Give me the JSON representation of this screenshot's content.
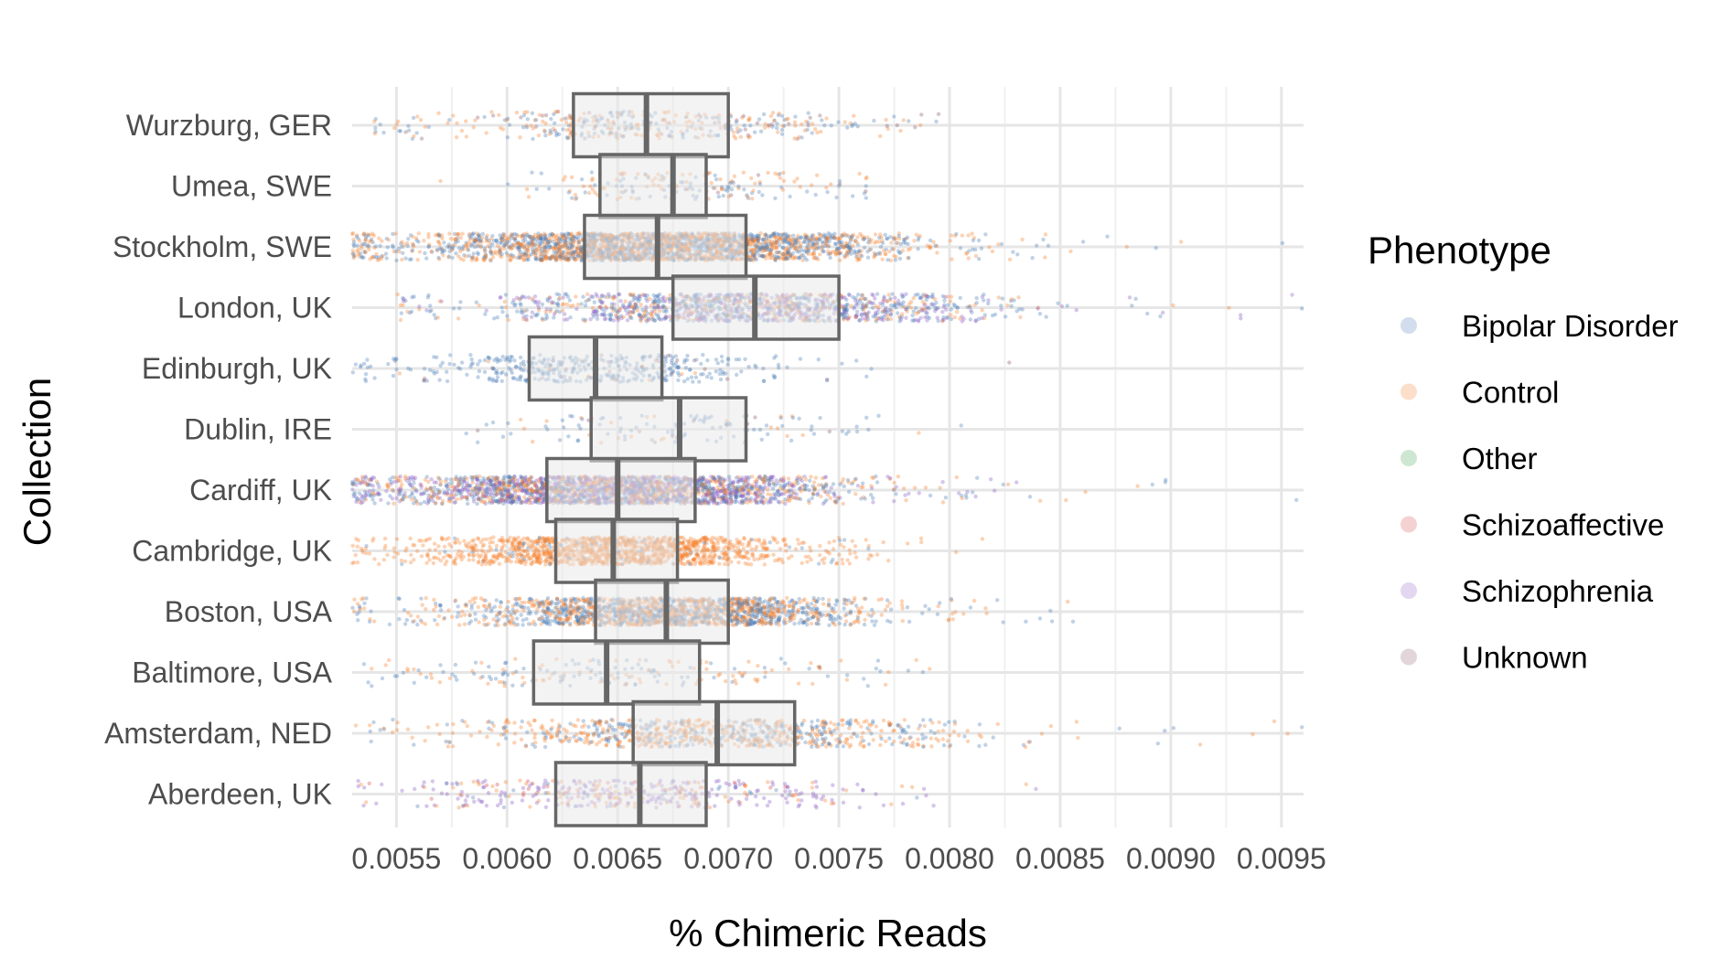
{
  "chart_data": {
    "type": "box-jitter",
    "title": "",
    "xlabel": "% Chimeric Reads",
    "ylabel": "Collection",
    "xlim": [
      0.0053,
      0.0096
    ],
    "x_ticks": [
      0.0055,
      0.006,
      0.0065,
      0.007,
      0.0075,
      0.008,
      0.0085,
      0.009,
      0.0095
    ],
    "x_tick_labels": [
      "0.0055",
      "0.0060",
      "0.0065",
      "0.0070",
      "0.0075",
      "0.0080",
      "0.0085",
      "0.0090",
      "0.0095"
    ],
    "grid": true,
    "legend": {
      "title": "Phenotype",
      "position": "right",
      "entries": [
        {
          "name": "Bipolar Disorder",
          "color": "#4a7db8"
        },
        {
          "name": "Control",
          "color": "#f5812f"
        },
        {
          "name": "Other",
          "color": "#3aa04a"
        },
        {
          "name": "Schizoaffective",
          "color": "#d94a4a"
        },
        {
          "name": "Schizophrenia",
          "color": "#8a5bc4"
        },
        {
          "name": "Unknown",
          "color": "#8c5a6a"
        }
      ]
    },
    "categories": [
      "Wurzburg, GER",
      "Umea, SWE",
      "Stockholm, SWE",
      "London, UK",
      "Edinburgh, UK",
      "Dublin, IRE",
      "Cardiff, UK",
      "Cambridge, UK",
      "Boston, USA",
      "Baltimore, USA",
      "Amsterdam, NED",
      "Aberdeen, UK"
    ],
    "boxes": [
      {
        "q1": 0.0063,
        "median": 0.00663,
        "q3": 0.007,
        "min": 0.0054,
        "max": 0.008
      },
      {
        "q1": 0.00642,
        "median": 0.00675,
        "q3": 0.0069,
        "min": 0.00555,
        "max": 0.00765
      },
      {
        "q1": 0.00635,
        "median": 0.00668,
        "q3": 0.00708,
        "min": 0.0053,
        "max": 0.0096
      },
      {
        "q1": 0.00675,
        "median": 0.00712,
        "q3": 0.0075,
        "min": 0.0055,
        "max": 0.0096
      },
      {
        "q1": 0.0061,
        "median": 0.0064,
        "q3": 0.0067,
        "min": 0.0053,
        "max": 0.0094
      },
      {
        "q1": 0.00638,
        "median": 0.00678,
        "q3": 0.00708,
        "min": 0.00575,
        "max": 0.00825
      },
      {
        "q1": 0.00618,
        "median": 0.0065,
        "q3": 0.00685,
        "min": 0.0053,
        "max": 0.0096
      },
      {
        "q1": 0.00622,
        "median": 0.00648,
        "q3": 0.00677,
        "min": 0.0053,
        "max": 0.0082
      },
      {
        "q1": 0.0064,
        "median": 0.00672,
        "q3": 0.007,
        "min": 0.0053,
        "max": 0.0086
      },
      {
        "q1": 0.00612,
        "median": 0.00645,
        "q3": 0.00687,
        "min": 0.00535,
        "max": 0.00865
      },
      {
        "q1": 0.00657,
        "median": 0.00695,
        "q3": 0.0073,
        "min": 0.0053,
        "max": 0.0096
      },
      {
        "q1": 0.00622,
        "median": 0.0066,
        "q3": 0.0069,
        "min": 0.0053,
        "max": 0.0084
      }
    ],
    "phenotype_mix": [
      {
        "Bipolar Disorder": 0.45,
        "Control": 0.45,
        "Unknown": 0.1
      },
      {
        "Bipolar Disorder": 0.4,
        "Control": 0.5,
        "Unknown": 0.1
      },
      {
        "Bipolar Disorder": 0.5,
        "Control": 0.5
      },
      {
        "Bipolar Disorder": 0.45,
        "Control": 0.25,
        "Schizophrenia": 0.3
      },
      {
        "Bipolar Disorder": 0.9,
        "Control": 0.05,
        "Unknown": 0.05
      },
      {
        "Bipolar Disorder": 0.7,
        "Control": 0.2,
        "Unknown": 0.1
      },
      {
        "Bipolar Disorder": 0.35,
        "Control": 0.3,
        "Schizophrenia": 0.35
      },
      {
        "Control": 0.95,
        "Bipolar Disorder": 0.05
      },
      {
        "Bipolar Disorder": 0.5,
        "Control": 0.5
      },
      {
        "Bipolar Disorder": 0.55,
        "Control": 0.45
      },
      {
        "Bipolar Disorder": 0.4,
        "Control": 0.6
      },
      {
        "Schizophrenia": 0.55,
        "Control": 0.25,
        "Schizoaffective": 0.1,
        "Bipolar Disorder": 0.1
      }
    ],
    "point_density": [
      380,
      180,
      2600,
      1300,
      420,
      130,
      2400,
      1400,
      1800,
      200,
      850,
      420
    ]
  }
}
